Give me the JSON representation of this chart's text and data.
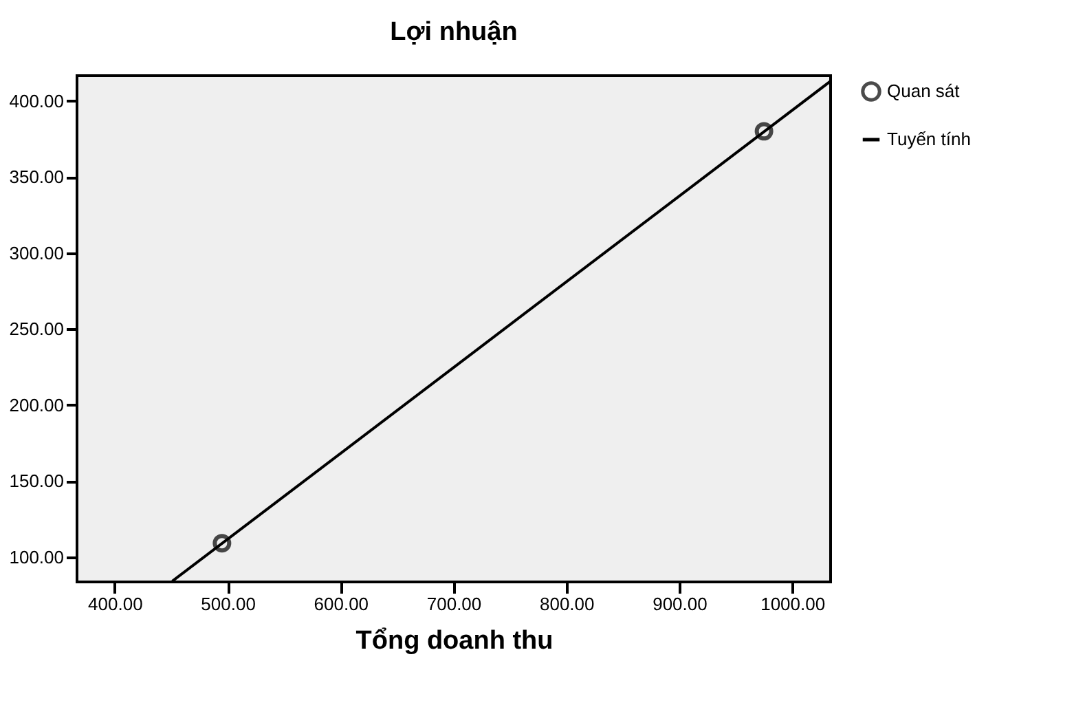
{
  "chart_data": {
    "type": "scatter",
    "title": "Lợi nhuận",
    "xlabel": "Tổng doanh thu",
    "series": [
      {
        "name": "Quan sát",
        "color": "#000000",
        "marker": "circle",
        "x": [
          495,
          975
        ],
        "values": [
          109,
          380
        ]
      },
      {
        "name": "Tuyến tính",
        "type": "line",
        "color": "#000000",
        "line_style": "solid",
        "x": [
          451,
          1034
        ],
        "values": [
          84,
          413
        ]
      }
    ],
    "xlim": [
      366.6,
      1034
    ],
    "ylim": [
      83.5,
      416.6
    ],
    "xticks": [
      {
        "value": 400,
        "label": "400.00"
      },
      {
        "value": 500,
        "label": "500.00"
      },
      {
        "value": 600,
        "label": "600.00"
      },
      {
        "value": 700,
        "label": "700.00"
      },
      {
        "value": 800,
        "label": "800.00"
      },
      {
        "value": 900,
        "label": "900.00"
      },
      {
        "value": 1000,
        "label": "1000.00"
      }
    ],
    "yticks": [
      {
        "value": 100,
        "label": "100.00"
      },
      {
        "value": 150,
        "label": "150.00"
      },
      {
        "value": 200,
        "label": "200.00"
      },
      {
        "value": 250,
        "label": "250.00"
      },
      {
        "value": 300,
        "label": "300.00"
      },
      {
        "value": 350,
        "label": "350.00"
      },
      {
        "value": 400,
        "label": "400.00"
      }
    ],
    "grid": false,
    "legend": "top right"
  }
}
